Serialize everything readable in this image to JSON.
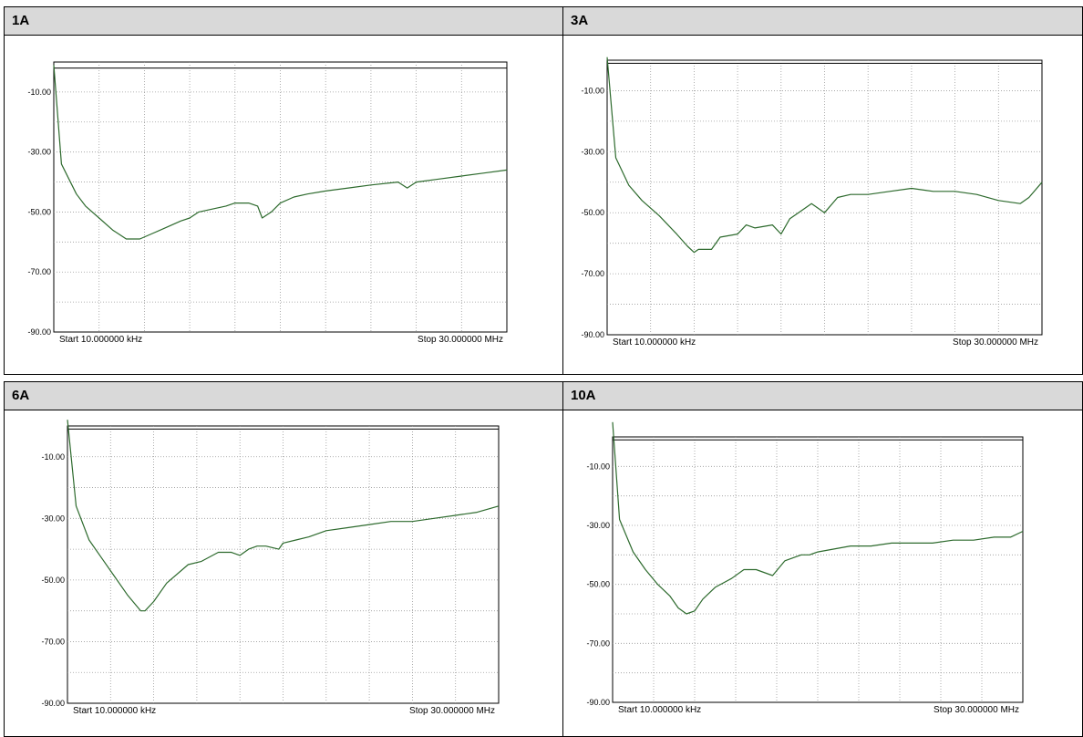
{
  "panels": [
    {
      "title": "1A"
    },
    {
      "title": "3A"
    },
    {
      "title": "6A"
    },
    {
      "title": "10A"
    }
  ],
  "chart_data": [
    {
      "type": "line",
      "title": "1A",
      "x_axis_type": "log",
      "x_start_label": "Start 10.000000 kHz",
      "x_stop_label": "Stop 30.000000 MHz",
      "xlim": [
        0,
        10
      ],
      "ylim": [
        -90,
        0
      ],
      "ytick_labels": [
        "-10.00",
        "-30.00",
        "-50.00",
        "-70.00",
        "-90.00"
      ],
      "grid": true,
      "reference_level": -2,
      "series": [
        {
          "color": "#2d6a2d",
          "x": [
            0,
            0.17,
            0.5,
            0.7,
            1.0,
            1.3,
            1.6,
            1.9,
            2.2,
            2.5,
            2.8,
            3.0,
            3.2,
            3.5,
            3.8,
            4.0,
            4.3,
            4.5,
            4.6,
            4.8,
            5.0,
            5.3,
            5.6,
            6.0,
            6.5,
            7.0,
            7.6,
            7.8,
            8.0,
            8.5,
            9.0,
            9.5,
            10.0
          ],
          "y": [
            -1,
            -34,
            -44,
            -48,
            -52,
            -56,
            -59,
            -59,
            -57,
            -55,
            -53,
            -52,
            -50,
            -49,
            -48,
            -47,
            -47,
            -48,
            -52,
            -50,
            -47,
            -45,
            -44,
            -43,
            -42,
            -41,
            -40,
            -42,
            -40,
            -39,
            -38,
            -37,
            -36
          ]
        }
      ]
    },
    {
      "type": "line",
      "title": "3A",
      "x_axis_type": "log",
      "x_start_label": "Start 10.000000 kHz",
      "x_stop_label": "Stop 30.000000 MHz",
      "xlim": [
        0,
        10
      ],
      "ylim": [
        -90,
        0
      ],
      "ytick_labels": [
        "-10.00",
        "-30.00",
        "-50.00",
        "-70.00",
        "-90.00"
      ],
      "grid": true,
      "reference_level": -1,
      "series": [
        {
          "color": "#2d6a2d",
          "x": [
            0,
            0.2,
            0.5,
            0.8,
            1.2,
            1.6,
            1.85,
            2.0,
            2.1,
            2.4,
            2.6,
            3.0,
            3.2,
            3.4,
            3.8,
            4.0,
            4.2,
            4.4,
            4.7,
            5.0,
            5.3,
            5.6,
            6.0,
            6.5,
            7.0,
            7.5,
            8.0,
            8.5,
            9.0,
            9.5,
            9.7,
            10.0
          ],
          "y": [
            1,
            -32,
            -41,
            -46,
            -51,
            -57,
            -61,
            -63,
            -62,
            -62,
            -58,
            -57,
            -54,
            -55,
            -54,
            -57,
            -52,
            -50,
            -47,
            -50,
            -45,
            -44,
            -44,
            -43,
            -42,
            -43,
            -43,
            -44,
            -46,
            -47,
            -45,
            -40
          ]
        }
      ]
    },
    {
      "type": "line",
      "title": "6A",
      "x_axis_type": "log",
      "x_start_label": "Start 10.000000 kHz",
      "x_stop_label": "Stop 30.000000 MHz",
      "xlim": [
        0,
        10
      ],
      "ylim": [
        -90,
        0
      ],
      "ytick_labels": [
        "-10.00",
        "-30.00",
        "-50.00",
        "-70.00",
        "-90.00"
      ],
      "grid": true,
      "reference_level": -1,
      "series": [
        {
          "color": "#2d6a2d",
          "x": [
            0,
            0.2,
            0.5,
            0.8,
            1.1,
            1.4,
            1.7,
            1.8,
            2.0,
            2.3,
            2.8,
            3.1,
            3.5,
            3.8,
            4.0,
            4.2,
            4.4,
            4.6,
            4.9,
            5.0,
            5.3,
            5.6,
            6.0,
            6.5,
            7.0,
            7.5,
            8.0,
            8.5,
            9.0,
            9.5,
            10.0
          ],
          "y": [
            2,
            -26,
            -37,
            -43,
            -49,
            -55,
            -60,
            -60,
            -57,
            -51,
            -45,
            -44,
            -41,
            -41,
            -42,
            -40,
            -39,
            -39,
            -40,
            -38,
            -37,
            -36,
            -34,
            -33,
            -32,
            -31,
            -31,
            -30,
            -29,
            -28,
            -26
          ]
        }
      ]
    },
    {
      "type": "line",
      "title": "10A",
      "x_axis_type": "log",
      "x_start_label": "Start 10.000000 kHz",
      "x_stop_label": "Stop 30.000000 MHz",
      "xlim": [
        0,
        10
      ],
      "ylim": [
        -90,
        0
      ],
      "ytick_labels": [
        "-10.00",
        "-30.00",
        "-50.00",
        "-70.00",
        "-90.00"
      ],
      "grid": true,
      "reference_level": -1,
      "series": [
        {
          "color": "#2d6a2d",
          "x": [
            0,
            0.17,
            0.5,
            0.8,
            1.1,
            1.4,
            1.6,
            1.8,
            2.0,
            2.2,
            2.5,
            2.9,
            3.2,
            3.5,
            3.9,
            4.2,
            4.4,
            4.6,
            4.8,
            5.0,
            5.4,
            5.8,
            6.3,
            6.8,
            7.3,
            7.8,
            8.3,
            8.8,
            9.3,
            9.7,
            10.0
          ],
          "y": [
            5,
            -28,
            -39,
            -45,
            -50,
            -54,
            -58,
            -60,
            -59,
            -55,
            -51,
            -48,
            -45,
            -45,
            -47,
            -42,
            -41,
            -40,
            -40,
            -39,
            -38,
            -37,
            -37,
            -36,
            -36,
            -36,
            -35,
            -35,
            -34,
            -34,
            -32
          ]
        }
      ]
    }
  ]
}
